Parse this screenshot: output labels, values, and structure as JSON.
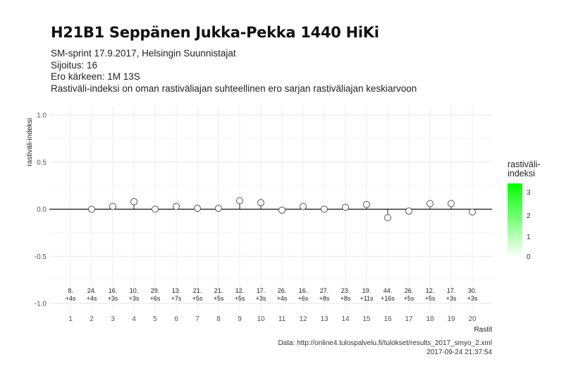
{
  "title": "H21B1 Seppänen Jukka-Pekka 1440 HiKi",
  "subtitle_lines": [
    "SM-sprint 17.9.2017, Helsingin Suunnistajat",
    "Sijoitus: 16",
    "Ero kärkeen: 1M 13S",
    "Rastiväli-indeksi on oman rastiväliajan suhteellinen ero sarjan rastiväliajan keskiarvoon"
  ],
  "legend": {
    "title_lines": [
      "rastiväli-",
      "indeksi"
    ],
    "ticks": [
      "3",
      "2",
      "1",
      "0"
    ],
    "color_low": "#ffffff",
    "color_high": "#00ff00"
  },
  "footer": {
    "source": "Data: http://online4.tulospalvelu.fi/tulokset/results_2017_smyo_2.xml",
    "timestamp": "2017-09-24 21:37:54"
  },
  "chart_data": {
    "type": "scatter",
    "xlabel": "Rastit",
    "ylabel": "rastiväli-indeksi",
    "ylim": [
      -1.0,
      1.0
    ],
    "y_ticks": [
      "1.0",
      "0.5",
      "0.0",
      "-0.5",
      "-1.0"
    ],
    "grid": true,
    "reference_line_y": 0,
    "x": [
      "1",
      "2",
      "3",
      "4",
      "5",
      "6",
      "7",
      "8",
      "9",
      "10",
      "11",
      "12",
      "13",
      "14",
      "15",
      "16",
      "17",
      "18",
      "19",
      "20"
    ],
    "y": [
      null,
      0.0,
      0.03,
      0.08,
      0.0,
      0.03,
      0.01,
      0.01,
      0.09,
      0.07,
      -0.01,
      0.03,
      0.0,
      0.02,
      0.05,
      -0.09,
      -0.02,
      0.06,
      0.06,
      -0.03
    ],
    "rank_labels": [
      "8.",
      "24.",
      "16.",
      "10.",
      "29.",
      "13.",
      "21.",
      "21.",
      "12.",
      "17.",
      "26.",
      "16.",
      "27.",
      "23.",
      "19.",
      "44.",
      "26.",
      "12.",
      "17.",
      "30."
    ],
    "diff_labels": [
      "+4s",
      "+4s",
      "+3s",
      "+3s",
      "+6s",
      "+7s",
      "+5s",
      "+5s",
      "+5s",
      "+3s",
      "+4s",
      "+6s",
      "+8s",
      "+8s",
      "+11s",
      "+16s",
      "+5s",
      "+5s",
      "+3s",
      "+3s"
    ],
    "point_color": "#ffffff",
    "point_stroke": "#555555"
  }
}
